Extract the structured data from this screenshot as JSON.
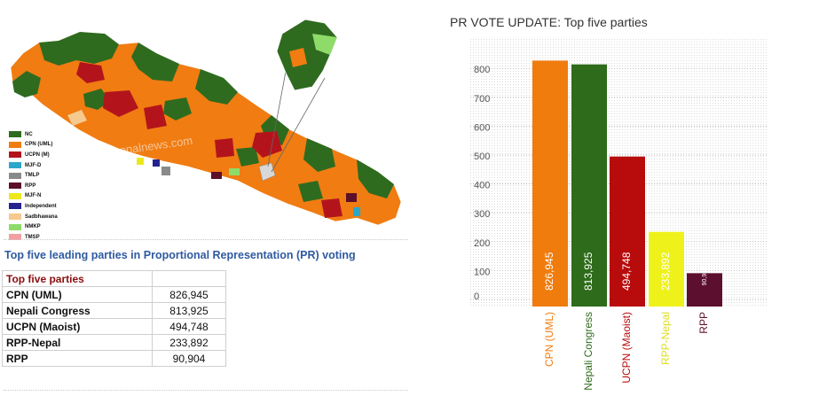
{
  "map": {
    "legend": [
      {
        "label": "NC",
        "color": "#2e6b1f"
      },
      {
        "label": "CPN (UML)",
        "color": "#f07c12"
      },
      {
        "label": "UCPN (M)",
        "color": "#b3141c"
      },
      {
        "label": "MJF-D",
        "color": "#2aa7c8"
      },
      {
        "label": "TMLP",
        "color": "#8a8a8a"
      },
      {
        "label": "RPP",
        "color": "#5c0f2a"
      },
      {
        "label": "MJF-N",
        "color": "#ede81e"
      },
      {
        "label": "Independent",
        "color": "#23238f"
      },
      {
        "label": "Sadbhawana",
        "color": "#f6c98f"
      },
      {
        "label": "NMKP",
        "color": "#8edb6a"
      },
      {
        "label": "TMSP",
        "color": "#f2a0a0"
      }
    ],
    "watermark": "© nepalnews.com"
  },
  "caption": "Top five leading parties in Proportional Representation (PR) voting",
  "table": {
    "header": "Top five parties",
    "rows": [
      {
        "party": "CPN (UML)",
        "votes": "826,945"
      },
      {
        "party": "Nepali Congress",
        "votes": "813,925"
      },
      {
        "party": "UCPN (Maoist)",
        "votes": "494,748"
      },
      {
        "party": "RPP-Nepal",
        "votes": "233,892"
      },
      {
        "party": "RPP",
        "votes": "90,904"
      }
    ]
  },
  "chart_data": {
    "type": "bar",
    "title": "PR VOTE UPDATE: Top five parties",
    "categories": [
      "CPN (UML)",
      "Nepali Congress",
      "UCPN (Maoist)",
      "RPP-Nepal",
      "RPP"
    ],
    "values": [
      826945,
      813925,
      494748,
      233892,
      90904
    ],
    "value_labels": [
      "826,945",
      "813,925",
      "494,748",
      "233,892",
      "90,904"
    ],
    "colors": [
      "#f07c0e",
      "#2e6b1a",
      "#b80c0c",
      "#eef21a",
      "#5c0f2e"
    ],
    "label_colors": [
      "#f07c0e",
      "#2e6b1a",
      "#b80c0c",
      "#dbe021",
      "#5c0f2e"
    ],
    "yticks": [
      "0",
      "100",
      "200",
      "300",
      "400",
      "500",
      "600",
      "700",
      "800"
    ],
    "ylim": [
      0,
      860
    ],
    "ylabel_unit_note": "",
    "grid": true,
    "xlabel": "",
    "ylabel": ""
  }
}
